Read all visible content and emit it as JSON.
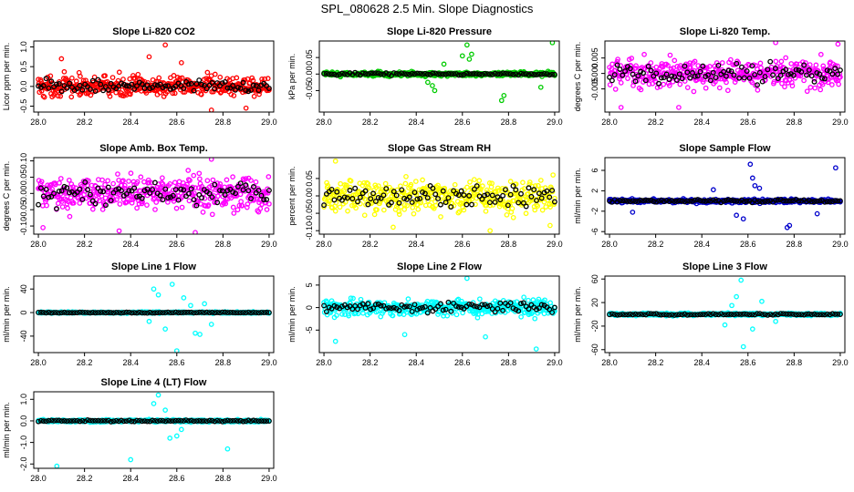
{
  "page": {
    "title": "SPL_080628  2.5 Min. Slope Diagnostics"
  },
  "chart_data": [
    {
      "type": "scatter",
      "title": "Slope Li-820 CO2",
      "ylabel": "Licor ppm per min.",
      "color": "#ff0000",
      "xlim": [
        27.98,
        29.02
      ],
      "xticks": [
        "28.0",
        "28.2",
        "28.4",
        "28.6",
        "28.8",
        "29.0"
      ],
      "ylim": [
        -0.65,
        1.15
      ],
      "yticks": [
        -0.5,
        0,
        0.5,
        1.0
      ],
      "ytick_labels": [
        "-0.5",
        "0.0",
        "0.5",
        "1.0"
      ],
      "noise": 0.25,
      "outliers": [
        [
          28.55,
          1.05
        ],
        [
          28.48,
          0.75
        ],
        [
          28.62,
          0.6
        ],
        [
          28.9,
          -0.55
        ],
        [
          28.1,
          0.7
        ],
        [
          28.75,
          -0.6
        ]
      ]
    },
    {
      "type": "scatter",
      "title": "Slope Li-820 Pressure",
      "ylabel": "kPa per min.",
      "color": "#00cc00",
      "xlim": [
        27.98,
        29.02
      ],
      "xticks": [
        "28.0",
        "28.2",
        "28.4",
        "28.6",
        "28.8",
        "29.0"
      ],
      "ylim": [
        -0.115,
        0.1
      ],
      "yticks": [
        -0.05,
        0,
        0.05
      ],
      "ytick_labels": [
        "-0.05",
        "0.00",
        "0.05"
      ],
      "noise": 0.006,
      "outliers": [
        [
          28.62,
          0.088
        ],
        [
          28.6,
          0.055
        ],
        [
          28.64,
          0.06
        ],
        [
          28.63,
          0.045
        ],
        [
          28.48,
          -0.05
        ],
        [
          28.47,
          -0.035
        ],
        [
          28.45,
          -0.025
        ],
        [
          28.78,
          -0.065
        ],
        [
          28.77,
          -0.08
        ],
        [
          28.52,
          0.03
        ],
        [
          28.99,
          0.095
        ],
        [
          28.94,
          -0.04
        ]
      ]
    },
    {
      "type": "scatter",
      "title": "Slope Li-820 Temp.",
      "ylabel": "degrees C per min.",
      "color": "#ff00ff",
      "xlim": [
        27.98,
        29.02
      ],
      "xticks": [
        "28.0",
        "28.2",
        "28.4",
        "28.6",
        "28.8",
        "29.0"
      ],
      "ylim": [
        -0.0125,
        0.0105
      ],
      "yticks": [
        -0.005,
        0,
        0.005
      ],
      "ytick_labels": [
        "-0.005",
        "0.000",
        "0.005"
      ],
      "noise": 0.0045,
      "outliers": [
        [
          28.99,
          0.0095
        ],
        [
          28.3,
          -0.011
        ],
        [
          28.05,
          -0.011
        ],
        [
          28.72,
          0.01
        ]
      ]
    },
    {
      "type": "scatter",
      "title": "Slope Amb. Box Temp.",
      "ylabel": "degrees C per min.",
      "color": "#ff00ff",
      "xlim": [
        27.98,
        29.02
      ],
      "xticks": [
        "28.0",
        "28.2",
        "28.4",
        "28.6",
        "28.8",
        "29.0"
      ],
      "ylim": [
        -0.125,
        0.11
      ],
      "yticks": [
        -0.1,
        -0.05,
        0,
        0.05,
        0.1
      ],
      "ytick_labels": [
        "-0.10",
        "-0.05",
        "0.00",
        "0.05",
        "0.10"
      ],
      "noise": 0.05,
      "outliers": [
        [
          28.75,
          0.105
        ],
        [
          28.68,
          -0.12
        ],
        [
          28.35,
          -0.115
        ],
        [
          28.02,
          -0.105
        ]
      ]
    },
    {
      "type": "scatter",
      "title": "Slope Gas Stream RH",
      "ylabel": "percent per min.",
      "color": "#ffff00",
      "xlim": [
        27.98,
        29.02
      ],
      "xticks": [
        "28.0",
        "28.2",
        "28.4",
        "28.6",
        "28.8",
        "29.0"
      ],
      "ylim": [
        -0.11,
        0.11
      ],
      "yticks": [
        -0.1,
        -0.05,
        0,
        0.05
      ],
      "ytick_labels": [
        "-0.10",
        "-0.05",
        "0.00",
        "0.05"
      ],
      "noise": 0.045,
      "outliers": [
        [
          28.72,
          -0.1
        ],
        [
          28.05,
          0.1
        ],
        [
          28.98,
          -0.085
        ],
        [
          28.3,
          -0.09
        ]
      ]
    },
    {
      "type": "scatter",
      "title": "Slope Sample Flow",
      "ylabel": "ml/min per min.",
      "color": "#0000cc",
      "xlim": [
        27.98,
        29.02
      ],
      "xticks": [
        "28.0",
        "28.2",
        "28.4",
        "28.6",
        "28.8",
        "29.0"
      ],
      "ylim": [
        -6.5,
        8.5
      ],
      "yticks": [
        -6,
        -2,
        2,
        6
      ],
      "ytick_labels": [
        "-6",
        "-2",
        "2",
        "6"
      ],
      "noise": 0.35,
      "outliers": [
        [
          28.61,
          7.2
        ],
        [
          28.62,
          4.5
        ],
        [
          28.63,
          3.0
        ],
        [
          28.58,
          -3.5
        ],
        [
          28.55,
          -2.8
        ],
        [
          28.78,
          -4.8
        ],
        [
          28.77,
          -5.2
        ],
        [
          28.98,
          6.5
        ],
        [
          28.9,
          -2.5
        ],
        [
          28.1,
          -2.2
        ],
        [
          28.45,
          2.2
        ],
        [
          28.65,
          2.5
        ]
      ]
    },
    {
      "type": "scatter",
      "title": "Slope Line 1 Flow",
      "ylabel": "ml/min per min.",
      "color": "#00ffff",
      "xlim": [
        27.98,
        29.02
      ],
      "xticks": [
        "28.0",
        "28.2",
        "28.4",
        "28.6",
        "28.8",
        "29.0"
      ],
      "ylim": [
        -68,
        62
      ],
      "yticks": [
        -40,
        0,
        40
      ],
      "ytick_labels": [
        "-40",
        "0",
        "40"
      ],
      "noise": 1.2,
      "outliers": [
        [
          28.6,
          -65
        ],
        [
          28.5,
          40
        ],
        [
          28.52,
          30
        ],
        [
          28.55,
          -28
        ],
        [
          28.63,
          25
        ],
        [
          28.68,
          -35
        ],
        [
          28.7,
          -37
        ],
        [
          28.72,
          15
        ],
        [
          28.75,
          -20
        ],
        [
          28.58,
          48
        ],
        [
          28.48,
          -15
        ],
        [
          28.66,
          12
        ]
      ]
    },
    {
      "type": "scatter",
      "title": "Slope Line 2 Flow",
      "ylabel": "ml/min per min.",
      "color": "#00ffff",
      "xlim": [
        27.98,
        29.02
      ],
      "xticks": [
        "28.0",
        "28.2",
        "28.4",
        "28.6",
        "28.8",
        "29.0"
      ],
      "ylim": [
        -10,
        7
      ],
      "yticks": [
        -5,
        0,
        5
      ],
      "ytick_labels": [
        "-5",
        "0",
        "5"
      ],
      "noise": 1.8,
      "outliers": [
        [
          28.92,
          -9.2
        ],
        [
          28.05,
          -7.5
        ],
        [
          28.62,
          6.5
        ],
        [
          28.7,
          -6.5
        ],
        [
          28.35,
          -6
        ]
      ]
    },
    {
      "type": "scatter",
      "title": "Slope Line 3 Flow",
      "ylabel": "ml/min per min.",
      "color": "#00ffff",
      "xlim": [
        27.98,
        29.02
      ],
      "xticks": [
        "28.0",
        "28.2",
        "28.4",
        "28.6",
        "28.8",
        "29.0"
      ],
      "ylim": [
        -65,
        65
      ],
      "yticks": [
        -60,
        -20,
        20,
        60
      ],
      "ytick_labels": [
        "-60",
        "-20",
        "20",
        "60"
      ],
      "noise": 2.0,
      "outliers": [
        [
          28.57,
          58
        ],
        [
          28.58,
          -55
        ],
        [
          28.55,
          30
        ],
        [
          28.62,
          -25
        ],
        [
          28.5,
          -18
        ],
        [
          28.66,
          22
        ],
        [
          28.53,
          15
        ],
        [
          28.72,
          -12
        ]
      ]
    },
    {
      "type": "scatter",
      "title": "Slope Line 4 (LT) Flow",
      "ylabel": "ml/min per min.",
      "color": "#00ffff",
      "xlim": [
        27.98,
        29.02
      ],
      "xticks": [
        "28.0",
        "28.2",
        "28.4",
        "28.6",
        "28.8",
        "29.0"
      ],
      "ylim": [
        -2.2,
        1.35
      ],
      "yticks": [
        -2,
        -1,
        0,
        1
      ],
      "ytick_labels": [
        "-2.0",
        "-1.0",
        "0.0",
        "1.0"
      ],
      "noise": 0.05,
      "outliers": [
        [
          28.52,
          1.2
        ],
        [
          28.5,
          0.8
        ],
        [
          28.08,
          -2.1
        ],
        [
          28.4,
          -1.8
        ],
        [
          28.82,
          -1.3
        ],
        [
          28.6,
          -0.7
        ],
        [
          28.57,
          -0.8
        ],
        [
          28.62,
          -0.4
        ],
        [
          28.55,
          0.5
        ]
      ]
    }
  ]
}
